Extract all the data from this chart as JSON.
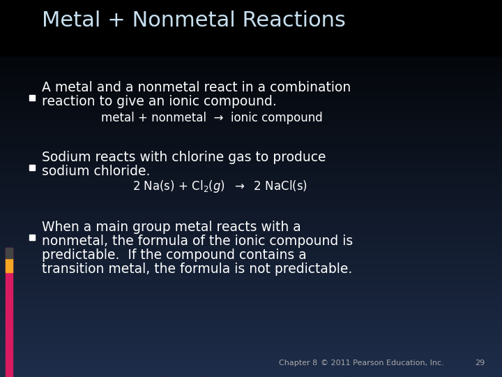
{
  "title": "Metal + Nonmetal Reactions",
  "title_color": "#c8e0f0",
  "title_font": "Courier New",
  "title_fontsize": 22,
  "bg_color_top": "#000000",
  "bg_color_bottom": "#1e2d4a",
  "body_text_color": "#ffffff",
  "body_font": "DejaVu Sans",
  "body_fontsize": 13.5,
  "sub_fontsize": 12,
  "footer_fontsize": 8,
  "bullet1_line1": "A metal and a nonmetal react in a combination",
  "bullet1_line2": "reaction to give an ionic compound.",
  "bullet1_sub": "metal + nonmetal  →  ionic compound",
  "bullet2_line1": "Sodium reacts with chlorine gas to produce",
  "bullet2_line2": "sodium chloride.",
  "bullet3_line1": "When a main group metal reacts with a",
  "bullet3_line2": "nonmetal, the formula of the ionic compound is",
  "bullet3_line3": "predictable.  If the compound contains a",
  "bullet3_line4": "transition metal, the formula is not predictable.",
  "sidebar_pink": "#d81b60",
  "sidebar_orange": "#f5a623",
  "sidebar_dark": "#444444",
  "footer_chapter": "Chapter 8",
  "footer_copy": "© 2011 Pearson Education, Inc.",
  "footer_page": "29"
}
